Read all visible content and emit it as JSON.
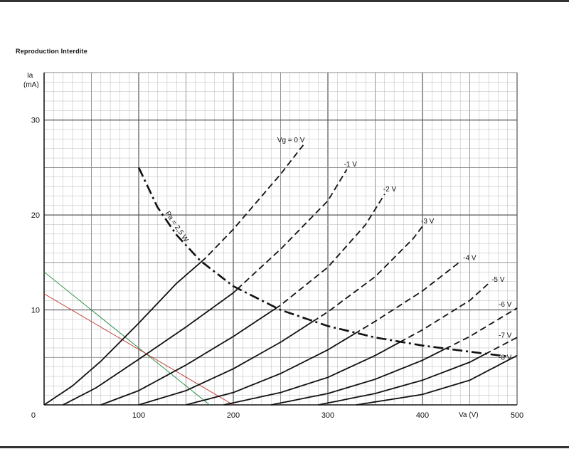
{
  "header": {
    "note": "Reproduction Interdite"
  },
  "chart_data": {
    "type": "line",
    "ylabel": "Ia",
    "ylabel_unit": "(mA)",
    "xlabel": "Va (V)",
    "xlim": [
      0,
      500
    ],
    "ylim": [
      0,
      35
    ],
    "x_ticks": [
      "0",
      "100",
      "200",
      "300",
      "400",
      "500"
    ],
    "y_ticks": [
      "10",
      "20",
      "30"
    ],
    "grid": true,
    "series": [
      {
        "name": "Vg = 0 V",
        "label": "Vg = 0 V",
        "points": [
          [
            0,
            0
          ],
          [
            30,
            2
          ],
          [
            60,
            4.6
          ],
          [
            100,
            8.6
          ],
          [
            140,
            12.8
          ],
          [
            170,
            15.4
          ],
          [
            200,
            18.5
          ],
          [
            250,
            24.3
          ],
          [
            275,
            27.5
          ]
        ]
      },
      {
        "name": "-1 V",
        "label": "-1 V",
        "points": [
          [
            20,
            0
          ],
          [
            55,
            1.8
          ],
          [
            100,
            4.8
          ],
          [
            150,
            8.2
          ],
          [
            200,
            11.8
          ],
          [
            250,
            16.4
          ],
          [
            300,
            21.5
          ],
          [
            320,
            24.8
          ]
        ]
      },
      {
        "name": "-2 V",
        "label": "-2 V",
        "points": [
          [
            60,
            0
          ],
          [
            100,
            1.5
          ],
          [
            150,
            4.2
          ],
          [
            200,
            7.2
          ],
          [
            250,
            10.5
          ],
          [
            300,
            14.5
          ],
          [
            340,
            19
          ],
          [
            360,
            22.2
          ]
        ]
      },
      {
        "name": "-3 V",
        "label": "-3 V",
        "points": [
          [
            100,
            0
          ],
          [
            150,
            1.5
          ],
          [
            200,
            3.8
          ],
          [
            250,
            6.6
          ],
          [
            300,
            9.8
          ],
          [
            350,
            13.5
          ],
          [
            390,
            17.5
          ],
          [
            400,
            18.8
          ]
        ]
      },
      {
        "name": "-4 V",
        "label": "-4 V",
        "points": [
          [
            150,
            0
          ],
          [
            200,
            1.3
          ],
          [
            250,
            3.3
          ],
          [
            300,
            5.8
          ],
          [
            350,
            8.8
          ],
          [
            400,
            12
          ],
          [
            440,
            15.1
          ]
        ]
      },
      {
        "name": "-5 V",
        "label": "-5 V",
        "points": [
          [
            190,
            0
          ],
          [
            250,
            1.3
          ],
          [
            300,
            2.9
          ],
          [
            350,
            5.2
          ],
          [
            400,
            7.9
          ],
          [
            450,
            11
          ],
          [
            470,
            12.8
          ]
        ]
      },
      {
        "name": "-6 V",
        "label": "-6 V",
        "points": [
          [
            240,
            0
          ],
          [
            300,
            1.2
          ],
          [
            350,
            2.7
          ],
          [
            400,
            4.7
          ],
          [
            450,
            7.2
          ],
          [
            500,
            10.2
          ]
        ]
      },
      {
        "name": "-7 V",
        "label": "-7 V",
        "points": [
          [
            290,
            0
          ],
          [
            350,
            1.2
          ],
          [
            400,
            2.6
          ],
          [
            450,
            4.5
          ],
          [
            500,
            7.1
          ]
        ]
      },
      {
        "name": "-8 V",
        "label": "-8 V",
        "points": [
          [
            330,
            0
          ],
          [
            400,
            1.1
          ],
          [
            450,
            2.6
          ],
          [
            500,
            5.2
          ]
        ]
      }
    ],
    "limit_curve": {
      "label": "Pa = 2,5 W",
      "points": [
        [
          100,
          25
        ],
        [
          120,
          20.8
        ],
        [
          140,
          17.9
        ],
        [
          165,
          15.2
        ],
        [
          200,
          12.5
        ],
        [
          250,
          10
        ],
        [
          300,
          8.3
        ],
        [
          350,
          7.1
        ],
        [
          400,
          6.25
        ],
        [
          450,
          5.6
        ],
        [
          490,
          5.1
        ]
      ]
    },
    "load_lines": [
      {
        "color": "#1a8a3a",
        "points": [
          [
            0,
            14
          ],
          [
            175,
            0
          ]
        ]
      },
      {
        "color": "#c0302a",
        "points": [
          [
            0,
            11.7
          ],
          [
            200,
            0
          ]
        ]
      }
    ],
    "colors": {
      "curve": "#111111",
      "grid": "#9a9a9a",
      "axis": "#222222"
    }
  }
}
